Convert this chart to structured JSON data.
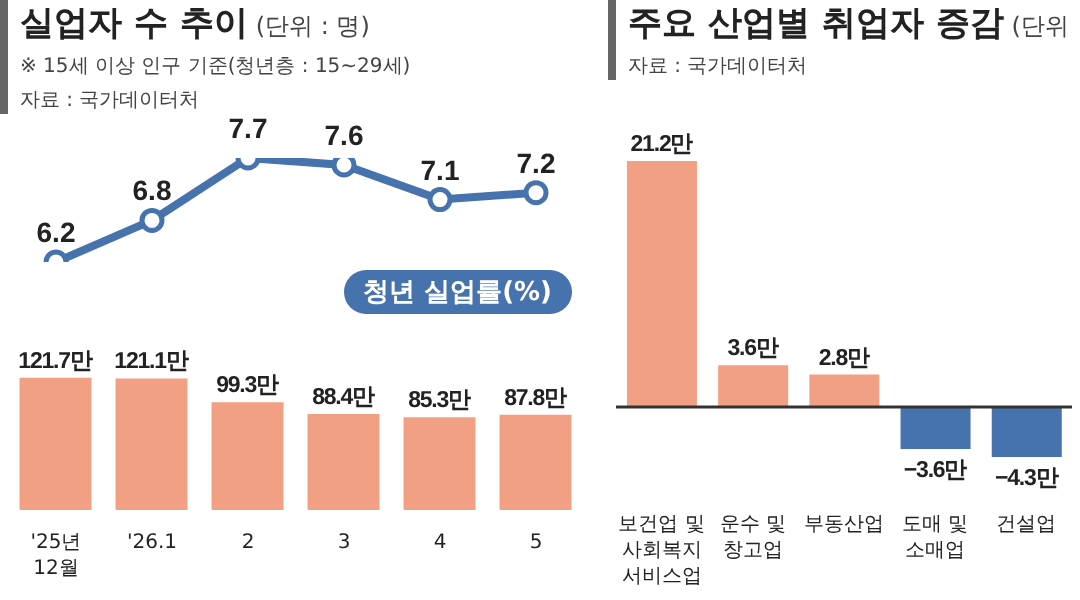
{
  "chart_data": [
    {
      "type": "line",
      "title": "실업자 수 추이",
      "subtitle": "(단위 : 명)",
      "annotations": [
        "※ 15세 이상 인구 기준(청년층 : 15~29세)",
        "자료 : 국가데이터처"
      ],
      "categories": [
        null,
        null,
        null,
        null,
        null,
        null
      ],
      "tick_labels": false,
      "legend": false,
      "series": [
        {
          "name": "청년 실업률(%)",
          "color": "#4672ad",
          "marker": "circle",
          "values": [
            6.2,
            6.8,
            7.7,
            7.6,
            7.1,
            7.2
          ],
          "value_labels": [
            "6.2",
            "6.8",
            "7.7",
            "7.6",
            "7.1",
            "7.2"
          ]
        }
      ]
    },
    {
      "type": "bar",
      "categories": [
        "'25년 12월",
        "'26.1",
        "2",
        "3",
        "4",
        "5"
      ],
      "tick_labels": "x",
      "color": "#f2a084",
      "values": [
        121.7,
        121.1,
        99.3,
        88.4,
        85.3,
        87.8
      ],
      "value_labels": [
        "121.7만",
        "121.1만",
        "99.3만",
        "88.4만",
        "85.3만",
        "87.8만"
      ]
    },
    {
      "type": "bar",
      "title": "주요 산업별 취업자 증감",
      "subtitle": "(단위",
      "annotations": [
        "자료 : 국가데이터처"
      ],
      "categories": [
        "보건업 및 사회복지 서비스업",
        "운수 및 창고업",
        "부동산업",
        "도매 및 소매업",
        "건설업"
      ],
      "tick_labels": "x",
      "values": [
        21.2,
        3.6,
        2.8,
        -3.6,
        -4.3
      ],
      "colors": [
        "#f2a084",
        "#f2a084",
        "#f2a084",
        "#4672ad",
        "#4672ad"
      ],
      "value_labels": [
        "21.2만",
        "3.6만",
        "2.8만",
        "−3.6만",
        "−4.3만"
      ]
    }
  ]
}
